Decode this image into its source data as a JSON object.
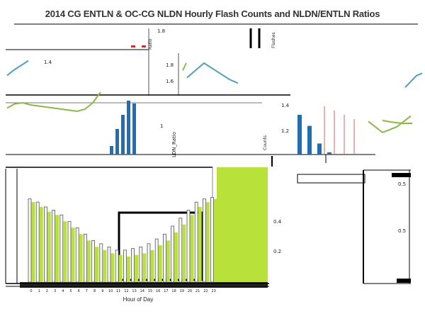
{
  "title": "2014 CG ENTLN & OC-CG NLDN Hourly Flash Counts and NLDN/ENTLN Ratios",
  "colors": {
    "background": "#ffffff",
    "bar_blue": "#1f6fb4",
    "bar_lime": "#b8e23a",
    "line_blue": "#4f9fc0",
    "line_green": "#8cb84a",
    "line_red": "#d06060",
    "black": "#000000",
    "grid": "#cccccc"
  },
  "chart_data": {
    "type": "bar",
    "title": "2014 CG ENTLN & OC-CG NLDN Hourly Flash Counts and NLDN/ENTLN Ratios",
    "xlabel": "Hour of Day",
    "panels": [
      {
        "name": "upper-left ratio panel",
        "ylabel": "",
        "y_tick_labels": [
          "1.4"
        ],
        "series": [
          {
            "type": "line",
            "color": "blue",
            "values": [
              1.22,
              1.28,
              1.33,
              1.38
            ]
          },
          {
            "type": "line",
            "color": "green",
            "values": [
              1.05,
              1.09,
              1.1,
              1.08,
              1.07,
              1.06,
              1.05,
              1.04,
              1.03,
              1.02,
              1.04,
              1.1,
              1.2
            ]
          }
        ]
      },
      {
        "name": "upper-middle ratio panel",
        "ylabel": "Ratio",
        "y_tick_labels": [
          "1.8",
          "1.6",
          "1.8"
        ],
        "series": [
          {
            "type": "line",
            "color": "blue",
            "values": [
              1.62,
              1.7,
              1.78,
              1.72,
              1.66,
              1.6,
              1.56
            ]
          },
          {
            "type": "line",
            "color": "green",
            "values": [
              1.7,
              1.78
            ]
          }
        ]
      },
      {
        "name": "upper-right ratio panel",
        "ylabel": "Counts",
        "y_tick_labels": [
          "1.4",
          "1.2"
        ],
        "series": [
          {
            "type": "bar",
            "color": "blue",
            "values": [
              1.36,
              1.26,
              1.1,
              1.02
            ]
          },
          {
            "type": "line",
            "color": "green",
            "values": [
              1.3,
              1.2,
              1.25,
              1.35
            ]
          }
        ]
      },
      {
        "name": "middle bar panel",
        "ylabel": "LDN_Ratio",
        "y_tick_labels": [
          "1"
        ],
        "series": [
          {
            "type": "bar",
            "color": "blue",
            "values": [
              0.15,
              0.45,
              0.7,
              0.95,
              0.9
            ]
          }
        ]
      },
      {
        "name": "main hourly counts panel",
        "ylabel": "Flashes",
        "y_tick_labels": [
          "0.4",
          "0.2"
        ],
        "ylim": [
          0,
          0.7
        ],
        "categories": [
          "0",
          "1",
          "2",
          "3",
          "4",
          "5",
          "6",
          "7",
          "8",
          "9",
          "10",
          "11",
          "12",
          "13",
          "14",
          "15",
          "16",
          "17",
          "18",
          "19",
          "20",
          "21",
          "22",
          "23"
        ],
        "series": [
          {
            "type": "bar",
            "color": "gray",
            "values": [
              0.52,
              0.5,
              0.47,
              0.45,
              0.42,
              0.38,
              0.34,
              0.3,
              0.26,
              0.24,
              0.22,
              0.2,
              0.2,
              0.21,
              0.22,
              0.24,
              0.27,
              0.3,
              0.35,
              0.4,
              0.45,
              0.5,
              0.52,
              0.53
            ]
          },
          {
            "type": "bar",
            "color": "lime",
            "values": [
              0.5,
              0.47,
              0.44,
              0.42,
              0.38,
              0.34,
              0.3,
              0.26,
              0.22,
              0.2,
              0.18,
              0.17,
              0.16,
              0.17,
              0.18,
              0.2,
              0.23,
              0.26,
              0.31,
              0.36,
              0.42,
              0.47,
              0.5,
              0.52
            ]
          }
        ]
      },
      {
        "name": "right inset panel",
        "ylabel": "",
        "y_tick_labels": [
          "0.5",
          "0.5"
        ],
        "series": []
      }
    ]
  }
}
